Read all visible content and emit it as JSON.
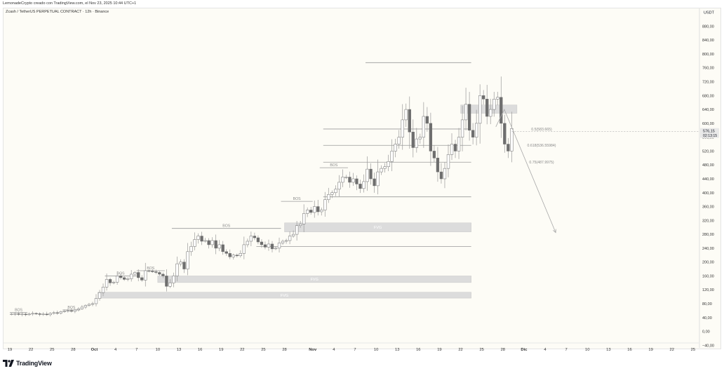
{
  "caption": "LemonadeCrypto creado con TradingView.com, el Nov 23, 2025 10:44 UTC+1",
  "symbol_line": "Zcash / TetherUS PERPETUAL CONTRACT · 12h · Binance",
  "brand": "TradingView",
  "colors": {
    "background": "#fdfcf6",
    "candle_up": "#ffffff",
    "candle_down": "#6e6e6e",
    "wick": "#9a9a9a",
    "zone_fill": "#dcdcdc",
    "line": "#9a9a9a"
  },
  "chart_data": {
    "type": "candlestick",
    "currency": "USDT",
    "y_ticks": [
      "880,00",
      "840,00",
      "800,00",
      "760,00",
      "720,00",
      "680,00",
      "640,00",
      "600,00",
      "560,00",
      "520,00",
      "480,00",
      "440,00",
      "400,00",
      "360,00",
      "320,00",
      "280,00",
      "240,00",
      "200,00",
      "160,00",
      "120,00",
      "80,00",
      "40,00",
      "0,00",
      "−40,00"
    ],
    "ylim": [
      -40,
      900
    ],
    "x_ticks": [
      {
        "label": "19",
        "d": 0
      },
      {
        "label": "22",
        "d": 3
      },
      {
        "label": "25",
        "d": 6
      },
      {
        "label": "28",
        "d": 9
      },
      {
        "label": "Oct",
        "d": 12
      },
      {
        "label": "4",
        "d": 15
      },
      {
        "label": "7",
        "d": 18
      },
      {
        "label": "10",
        "d": 21
      },
      {
        "label": "13",
        "d": 24
      },
      {
        "label": "16",
        "d": 27
      },
      {
        "label": "19",
        "d": 30
      },
      {
        "label": "22",
        "d": 33
      },
      {
        "label": "25",
        "d": 36
      },
      {
        "label": "28",
        "d": 39
      },
      {
        "label": "Nov",
        "d": 43
      },
      {
        "label": "4",
        "d": 46
      },
      {
        "label": "7",
        "d": 49
      },
      {
        "label": "10",
        "d": 52
      },
      {
        "label": "13",
        "d": 55
      },
      {
        "label": "16",
        "d": 58
      },
      {
        "label": "19",
        "d": 61
      },
      {
        "label": "22",
        "d": 64
      },
      {
        "label": "25",
        "d": 67
      },
      {
        "label": "28",
        "d": 70
      },
      {
        "label": "Dic",
        "d": 73
      },
      {
        "label": "4",
        "d": 76
      },
      {
        "label": "7",
        "d": 79
      },
      {
        "label": "10",
        "d": 82
      },
      {
        "label": "13",
        "d": 85
      },
      {
        "label": "16",
        "d": 88
      },
      {
        "label": "19",
        "d": 91
      },
      {
        "label": "22",
        "d": 94
      },
      {
        "label": "25",
        "d": 97
      }
    ],
    "price_label": "576,15",
    "countdown_label": "02:13:15",
    "current_price": 576.15,
    "closes": [
      50,
      51,
      49,
      50,
      48,
      50,
      52,
      51,
      49,
      50,
      48,
      52,
      54,
      53,
      57,
      59,
      60,
      58,
      62,
      65,
      70,
      75,
      78,
      80,
      95,
      112,
      128,
      150,
      140,
      142,
      160,
      155,
      150,
      152,
      165,
      170,
      155,
      148,
      175,
      174,
      172,
      170,
      165,
      160,
      130,
      140,
      160,
      195,
      200,
      180,
      230,
      245,
      265,
      275,
      260,
      262,
      250,
      262,
      240,
      250,
      230,
      225,
      215,
      220,
      218,
      225,
      250,
      260,
      275,
      270,
      258,
      250,
      243,
      252,
      238,
      240,
      255,
      260,
      262,
      275,
      280,
      305,
      310,
      340,
      350,
      343,
      360,
      345,
      350,
      380,
      395,
      400,
      410,
      430,
      445,
      445,
      430,
      440,
      425,
      412,
      432,
      468,
      440,
      420,
      460,
      470,
      475,
      490,
      520,
      540,
      560,
      610,
      640,
      575,
      530,
      555,
      560,
      620,
      600,
      520,
      500,
      460,
      440,
      470,
      510,
      540,
      520,
      560,
      610,
      655,
      580,
      560,
      600,
      680,
      670,
      620,
      640,
      670,
      675,
      600,
      540,
      520,
      585
    ],
    "zones": [
      {
        "label": "FVG",
        "from_d": 39,
        "to_d": 65.5,
        "low": 287,
        "high": 313
      },
      {
        "label": "FVG",
        "from_d": 21,
        "to_d": 65.5,
        "low": 141,
        "high": 160
      },
      {
        "label": "FVG",
        "from_d": 12.5,
        "to_d": 65.5,
        "low": 96,
        "high": 113
      },
      {
        "label": "",
        "from_d": 64,
        "to_d": 72,
        "low": 629,
        "high": 653
      }
    ],
    "bos": [
      {
        "label": "BOS",
        "from_d": 0,
        "to_d": 2.5,
        "price": 55
      },
      {
        "label": "BOS",
        "from_d": 7.5,
        "to_d": 10,
        "price": 62
      },
      {
        "label": "BOS",
        "from_d": 13.5,
        "to_d": 18,
        "price": 160
      },
      {
        "label": "BOS",
        "from_d": 18,
        "to_d": 22,
        "price": 175
      },
      {
        "label": "BOS",
        "from_d": 23,
        "to_d": 38.5,
        "price": 297
      },
      {
        "label": "BOS",
        "from_d": 38.5,
        "to_d": 43,
        "price": 375
      },
      {
        "label": "BOS",
        "from_d": 44,
        "to_d": 48,
        "price": 472
      }
    ],
    "fib": [
      {
        "label": "0.5(583.665)",
        "price": 583.665
      },
      {
        "label": "0.618(536.55984)",
        "price": 536.56
      },
      {
        "label": "0.75(487.9975)",
        "price": 487.9975
      }
    ],
    "h_lines": [
      {
        "from_d": 50.5,
        "to_d": 65.5,
        "price": 775
      },
      {
        "from_d": 44.5,
        "to_d": 65.5,
        "price": 388
      },
      {
        "from_d": 35,
        "to_d": 65.5,
        "price": 245
      }
    ],
    "projection": [
      {
        "d": 69,
        "price": 590
      },
      {
        "d": 70.2,
        "price": 640
      },
      {
        "d": 77.5,
        "price": 285
      }
    ]
  }
}
